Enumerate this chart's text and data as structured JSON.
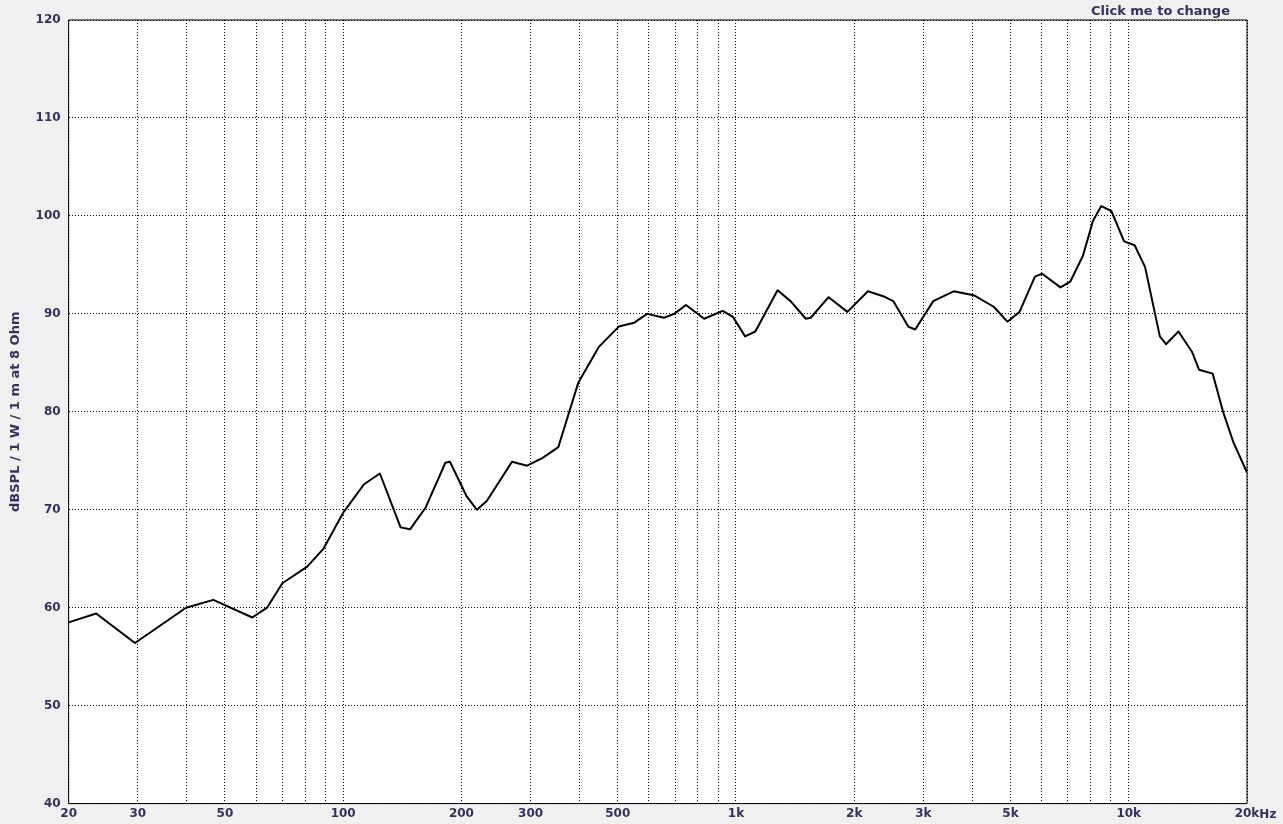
{
  "chart_data": {
    "type": "line",
    "ylabel": "dBSPL / 1 W / 1 m at 8 Ohm",
    "annotations": [
      "Click me to change"
    ],
    "x": [
      20,
      23.5,
      29.5,
      39.8,
      46.7,
      58.7,
      64,
      70,
      81,
      89,
      100,
      113,
      124,
      140,
      148,
      162,
      182,
      187,
      206,
      219,
      232,
      269,
      294,
      322,
      353,
      397,
      447,
      503,
      551,
      594,
      656,
      696,
      746,
      830,
      925,
      982,
      1055,
      1120,
      1276,
      1377,
      1506,
      1550,
      1721,
      1922,
      2167,
      2370,
      2514,
      2745,
      2860,
      3179,
      3580,
      4030,
      4540,
      4910,
      5270,
      5770,
      6020,
      6700,
      7100,
      7640,
      8110,
      8510,
      9030,
      9730,
      10350,
      11000,
      12000,
      12440,
      13380,
      14500,
      15100,
      16350,
      17380,
      18460,
      20000
    ],
    "series": [
      {
        "color": "#000000",
        "values": [
          58.5,
          59.4,
          56.4,
          60.0,
          60.8,
          59.0,
          60.0,
          62.5,
          64.2,
          66.0,
          69.7,
          72.6,
          73.7,
          68.2,
          68.0,
          70.2,
          74.8,
          74.9,
          71.4,
          70.0,
          70.9,
          74.9,
          74.5,
          75.3,
          76.4,
          83.0,
          86.6,
          88.7,
          89.1,
          90.0,
          89.6,
          90.0,
          90.9,
          89.5,
          90.3,
          89.7,
          87.7,
          88.2,
          92.4,
          91.3,
          89.5,
          89.6,
          91.7,
          90.2,
          92.3,
          91.8,
          91.3,
          88.7,
          88.4,
          91.3,
          92.3,
          91.9,
          90.7,
          89.2,
          90.2,
          93.8,
          94.1,
          92.7,
          93.3,
          95.9,
          99.5,
          101.0,
          100.5,
          97.4,
          97.0,
          94.8,
          87.7,
          86.9,
          88.2,
          86.1,
          84.3,
          83.9,
          80.0,
          76.9,
          73.8
        ]
      }
    ],
    "log": "x",
    "xlim": [
      20,
      20000
    ],
    "xticks": [
      20,
      30,
      {
        "value": 40,
        "label": null
      },
      50,
      {
        "value": 60,
        "label": null
      },
      {
        "value": 70,
        "label": null
      },
      {
        "value": 80,
        "label": null
      },
      {
        "value": 90,
        "label": null
      },
      100,
      200,
      300,
      {
        "value": 400,
        "label": null
      },
      500,
      {
        "value": 600,
        "label": null
      },
      {
        "value": 700,
        "label": null
      },
      {
        "value": 800,
        "label": null
      },
      {
        "value": 900,
        "label": null
      },
      {
        "value": 1000,
        "label": "1k"
      },
      {
        "value": 2000,
        "label": "2k"
      },
      {
        "value": 3000,
        "label": "3k"
      },
      {
        "value": 4000,
        "label": null
      },
      {
        "value": 5000,
        "label": "5k"
      },
      {
        "value": 6000,
        "label": null
      },
      {
        "value": 7000,
        "label": null
      },
      {
        "value": 8000,
        "label": null
      },
      {
        "value": 9000,
        "label": null
      },
      {
        "value": 10000,
        "label": "10k"
      },
      {
        "value": 20000,
        "label": "20k"
      }
    ],
    "xlabel": "Hz",
    "ylim": [
      40,
      120
    ],
    "yticks": [
      40,
      50,
      60,
      70,
      80,
      90,
      100,
      110,
      120
    ],
    "grid": true,
    "legend": false,
    "marker": "none",
    "line_style": "solid"
  }
}
